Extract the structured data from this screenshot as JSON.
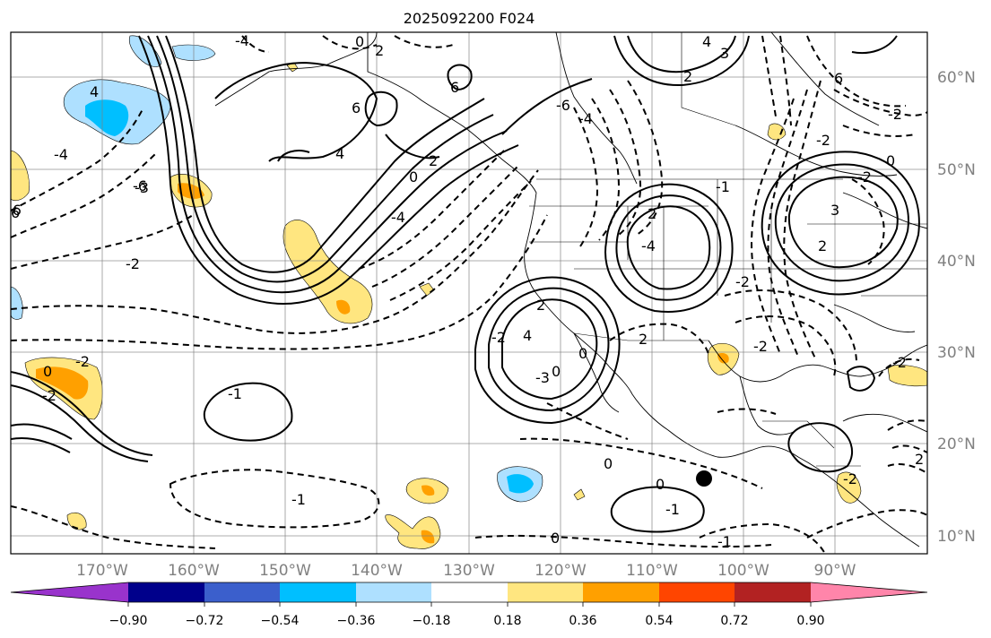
{
  "title": "2025092200 F024",
  "lat_labels": [
    "60°N",
    "50°N",
    "40°N",
    "30°N",
    "20°N",
    "10°N"
  ],
  "lon_labels": [
    "170°W",
    "160°W",
    "150°W",
    "140°W",
    "130°W",
    "120°W",
    "110°W",
    "100°W",
    "90°W"
  ],
  "colorbar": {
    "ticks": [
      "−0.90",
      "−0.72",
      "−0.54",
      "−0.36",
      "−0.18",
      "0.18",
      "0.36",
      "0.54",
      "0.72",
      "0.90"
    ],
    "colors": [
      "#9933cc",
      "#00008b",
      "#3b5fcc",
      "#00bfff",
      "#aee0ff",
      "#ffffff",
      "#ffe680",
      "#ffa000",
      "#ff4500",
      "#b22222",
      "#ff85aa"
    ]
  },
  "contour_labels": [
    "0",
    "2",
    "4",
    "6",
    "-4",
    "-6",
    "4",
    "2",
    "0",
    "4",
    "2",
    "3",
    "6",
    "6",
    "6",
    "-4",
    "-6",
    "-4",
    "-2",
    "-2",
    "0",
    "-2",
    "-3",
    "-4",
    "-2",
    "-1",
    "2",
    "-4",
    "2",
    "3",
    "2",
    "-2",
    "0",
    "2",
    "4",
    "-3",
    "0",
    "-2",
    "-2",
    "-2",
    "-1",
    "-2",
    "-6",
    "0",
    "-1",
    "2",
    "-2",
    "0",
    "-1",
    "0",
    "-1",
    "-2",
    "0"
  ],
  "place_marker": "location-dot"
}
